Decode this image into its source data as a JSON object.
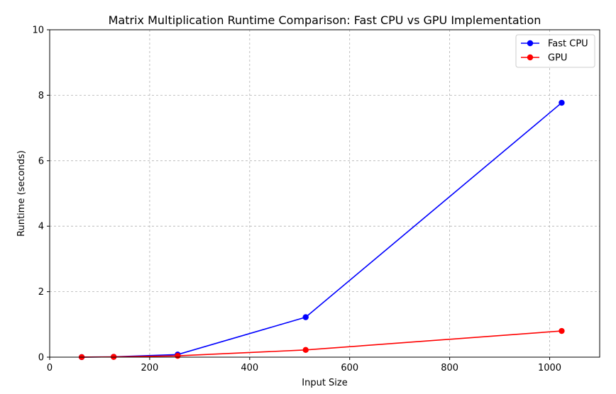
{
  "chart_data": {
    "type": "line",
    "title": "Matrix Multiplication Runtime Comparison: Fast CPU vs GPU Implementation",
    "xlabel": "Input Size",
    "ylabel": "Runtime (seconds)",
    "xlim": [
      0,
      1100
    ],
    "ylim": [
      0,
      10
    ],
    "xticks": [
      0,
      200,
      400,
      600,
      800,
      1000
    ],
    "yticks": [
      0,
      2,
      4,
      6,
      8,
      10
    ],
    "grid": true,
    "legend_position": "top-right",
    "x": [
      64,
      128,
      256,
      512,
      1024
    ],
    "series": [
      {
        "name": "Fast CPU",
        "color": "#0000ff",
        "values": [
          0.001,
          0.01,
          0.08,
          1.22,
          7.77
        ]
      },
      {
        "name": "GPU",
        "color": "#ff0000",
        "values": [
          0.001,
          0.008,
          0.04,
          0.22,
          0.8
        ]
      }
    ]
  }
}
